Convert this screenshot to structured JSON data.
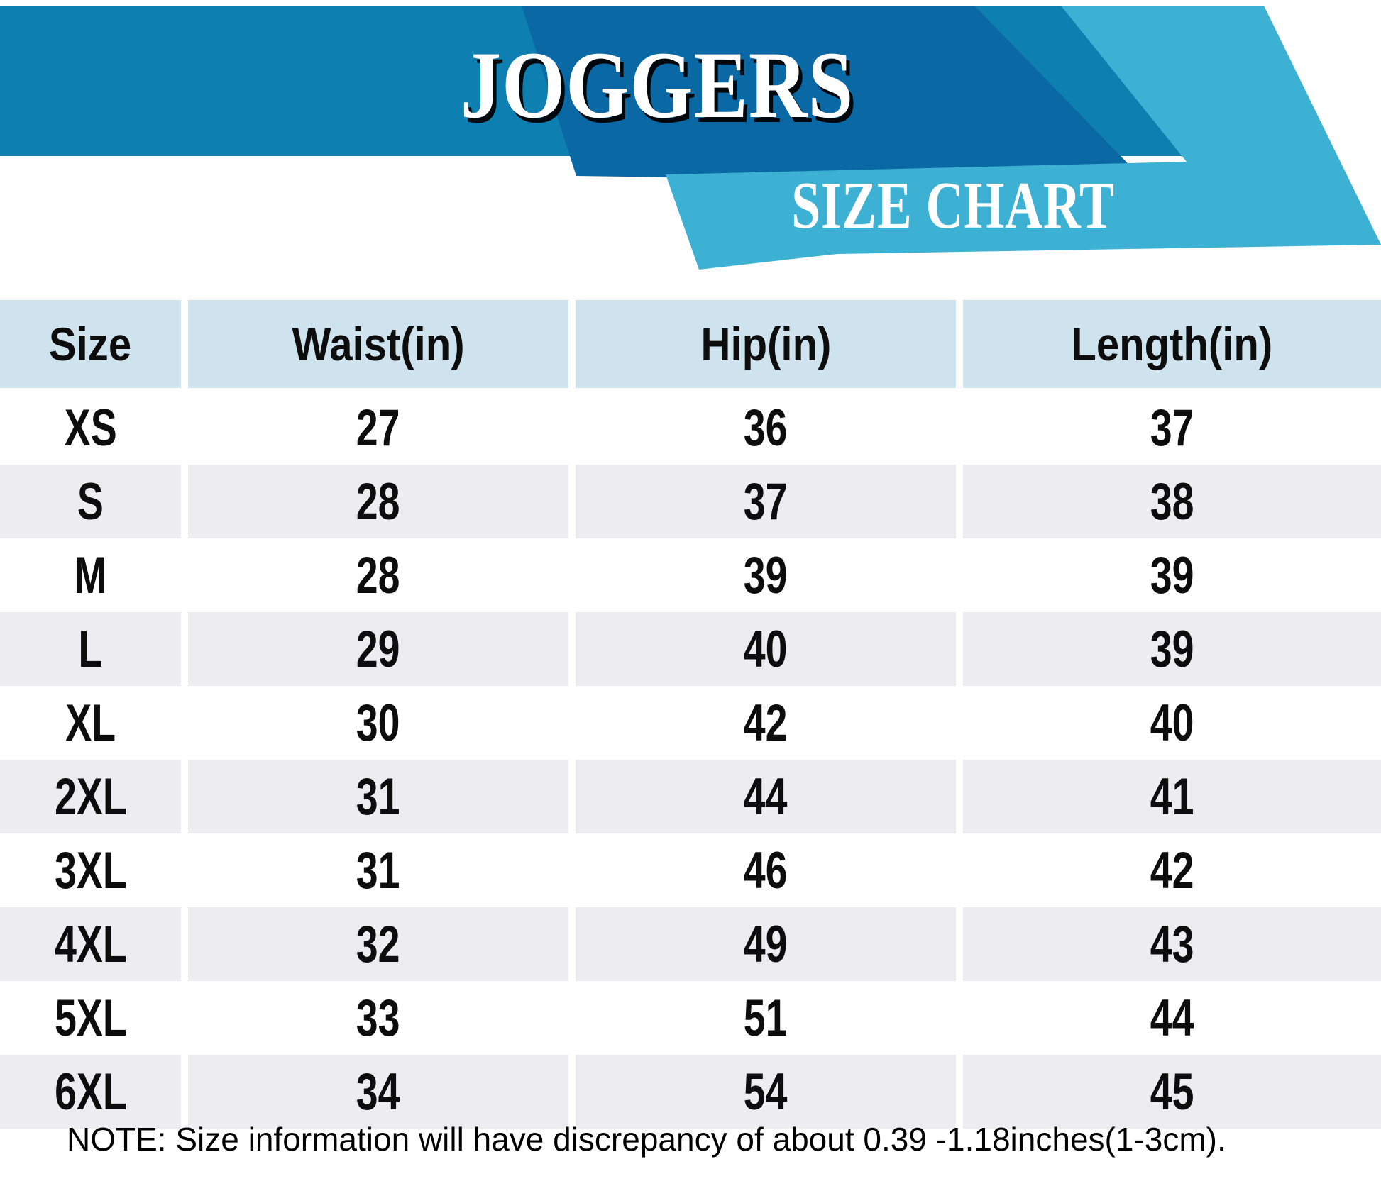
{
  "banner": {
    "title": "JOGGERS",
    "subtitle": "SIZE CHART",
    "colors": {
      "main_band": "#0d80b1",
      "dark_band": "#0a68a4",
      "light_band": "#3cb1d3",
      "title_text": "#ffffff",
      "title_shadow": "#000000"
    }
  },
  "table": {
    "header_bg": "#cfe3ef",
    "stripe_bg": "#ededf1",
    "row_bg": "#ffffff",
    "text_color": "#0d0d0d"
  },
  "chart_data": {
    "type": "table",
    "title": "JOGGERS",
    "subtitle": "SIZE CHART",
    "columns": [
      "Size",
      "Waist(in)",
      "Hip(in)",
      "Length(in)"
    ],
    "rows": [
      [
        "XS",
        "27",
        "36",
        "37"
      ],
      [
        "S",
        "28",
        "37",
        "38"
      ],
      [
        "M",
        "28",
        "39",
        "39"
      ],
      [
        "L",
        "29",
        "40",
        "39"
      ],
      [
        "XL",
        "30",
        "42",
        "40"
      ],
      [
        "2XL",
        "31",
        "44",
        "41"
      ],
      [
        "3XL",
        "31",
        "46",
        "42"
      ],
      [
        "4XL",
        "32",
        "49",
        "43"
      ],
      [
        "5XL",
        "33",
        "51",
        "44"
      ],
      [
        "6XL",
        "34",
        "54",
        "45"
      ]
    ]
  },
  "note": {
    "text": "NOTE: Size information will have discrepancy of about 0.39 -1.18inches(1-3cm)."
  }
}
